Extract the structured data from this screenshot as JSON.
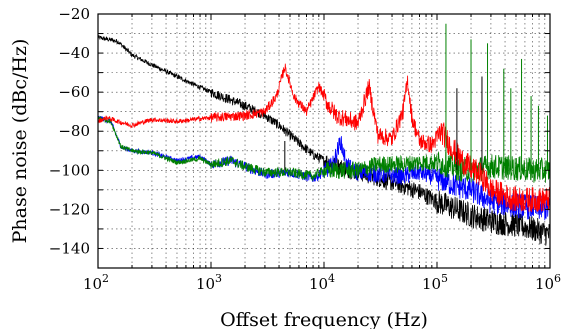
{
  "chart_data": {
    "type": "line",
    "title": "",
    "xlabel": "Offset frequency (Hz)",
    "ylabel": "Phase noise (dBc/Hz)",
    "xscale": "log",
    "xlim": [
      100,
      1000000
    ],
    "ylim": [
      -150,
      -20
    ],
    "xticks": [
      {
        "base": "10",
        "exp": "2",
        "value": 100
      },
      {
        "base": "10",
        "exp": "3",
        "value": 1000
      },
      {
        "base": "10",
        "exp": "4",
        "value": 10000
      },
      {
        "base": "10",
        "exp": "5",
        "value": 100000
      },
      {
        "base": "10",
        "exp": "6",
        "value": 1000000
      }
    ],
    "yticks": [
      "−20",
      "−40",
      "−60",
      "−80",
      "−100",
      "−120",
      "−140"
    ],
    "ytick_values": [
      -20,
      -40,
      -60,
      -80,
      -100,
      -120,
      -140
    ],
    "grid": true,
    "legend": "none",
    "series": [
      {
        "color": "#000000",
        "x": [
          100,
          150,
          200,
          300,
          500,
          700,
          1000,
          1500,
          2000,
          3000,
          4000,
          5000,
          6000,
          8000,
          10000,
          15000,
          20000,
          30000,
          50000,
          70000,
          100000,
          150000,
          200000,
          300000,
          500000,
          700000,
          1000000
        ],
        "y": [
          -32,
          -34,
          -41,
          -46,
          -52,
          -56,
          -60,
          -64,
          -67,
          -72,
          -77,
          -82,
          -86,
          -92,
          -95,
          -99,
          -101,
          -104,
          -108,
          -111,
          -116,
          -120,
          -123,
          -126,
          -128,
          -130,
          -133
        ]
      },
      {
        "color": "#ff0000",
        "x": [
          100,
          120,
          150,
          200,
          300,
          500,
          1000,
          2000,
          3000,
          3800,
          4500,
          5500,
          7000,
          9000,
          11000,
          13000,
          16000,
          20000,
          25000,
          30000,
          40000,
          50000,
          55000,
          60000,
          70000,
          90000,
          110000,
          130000,
          150000,
          180000,
          250000,
          300000,
          400000,
          500000,
          700000,
          1000000
        ],
        "y": [
          -75,
          -73,
          -75,
          -77,
          -74,
          -75,
          -73,
          -72,
          -70,
          -62,
          -47,
          -63,
          -70,
          -57,
          -67,
          -72,
          -74,
          -76,
          -57,
          -82,
          -84,
          -70,
          -54,
          -73,
          -85,
          -87,
          -80,
          -87,
          -92,
          -97,
          -103,
          -110,
          -113,
          -115,
          -115,
          -115
        ]
      },
      {
        "color": "#0000ff",
        "x": [
          100,
          130,
          160,
          200,
          300,
          500,
          800,
          1000,
          1500,
          2000,
          3000,
          5000,
          8000,
          10000,
          12000,
          14000,
          16000,
          20000,
          30000,
          50000,
          70000,
          100000,
          150000,
          200000,
          300000,
          500000,
          1000000
        ],
        "y": [
          -73,
          -75,
          -88,
          -90,
          -91,
          -95,
          -93,
          -97,
          -95,
          -98,
          -102,
          -101,
          -104,
          -101,
          -97,
          -85,
          -98,
          -101,
          -102,
          -103,
          -101,
          -104,
          -108,
          -110,
          -116,
          -118,
          -120
        ]
      },
      {
        "color": "#008000",
        "x": [
          100,
          130,
          160,
          200,
          300,
          500,
          800,
          1000,
          1500,
          2000,
          3000,
          5000,
          8000,
          10000,
          20000,
          30000,
          50000,
          70000,
          100000,
          120000,
          150000,
          200000,
          300000,
          500000,
          700000,
          1000000
        ],
        "y": [
          -73,
          -75,
          -88,
          -90,
          -91,
          -96,
          -94,
          -97,
          -95,
          -98,
          -101,
          -101,
          -103,
          -100,
          -100,
          -97,
          -97,
          -96,
          -96,
          -97,
          -99,
          -100,
          -98,
          -99,
          -100,
          -100
        ]
      }
    ],
    "spurs": {
      "green": [
        {
          "x": 120000,
          "y": -25
        },
        {
          "x": 200000,
          "y": -33
        },
        {
          "x": 280000,
          "y": -35
        },
        {
          "x": 390000,
          "y": -48
        },
        {
          "x": 450000,
          "y": -58
        },
        {
          "x": 560000,
          "y": -43
        },
        {
          "x": 680000,
          "y": -62
        },
        {
          "x": 790000,
          "y": -67
        },
        {
          "x": 950000,
          "y": -72
        }
      ],
      "black": [
        {
          "x": 4500,
          "y": -85
        },
        {
          "x": 150000,
          "y": -58
        },
        {
          "x": 250000,
          "y": -52
        }
      ]
    }
  }
}
